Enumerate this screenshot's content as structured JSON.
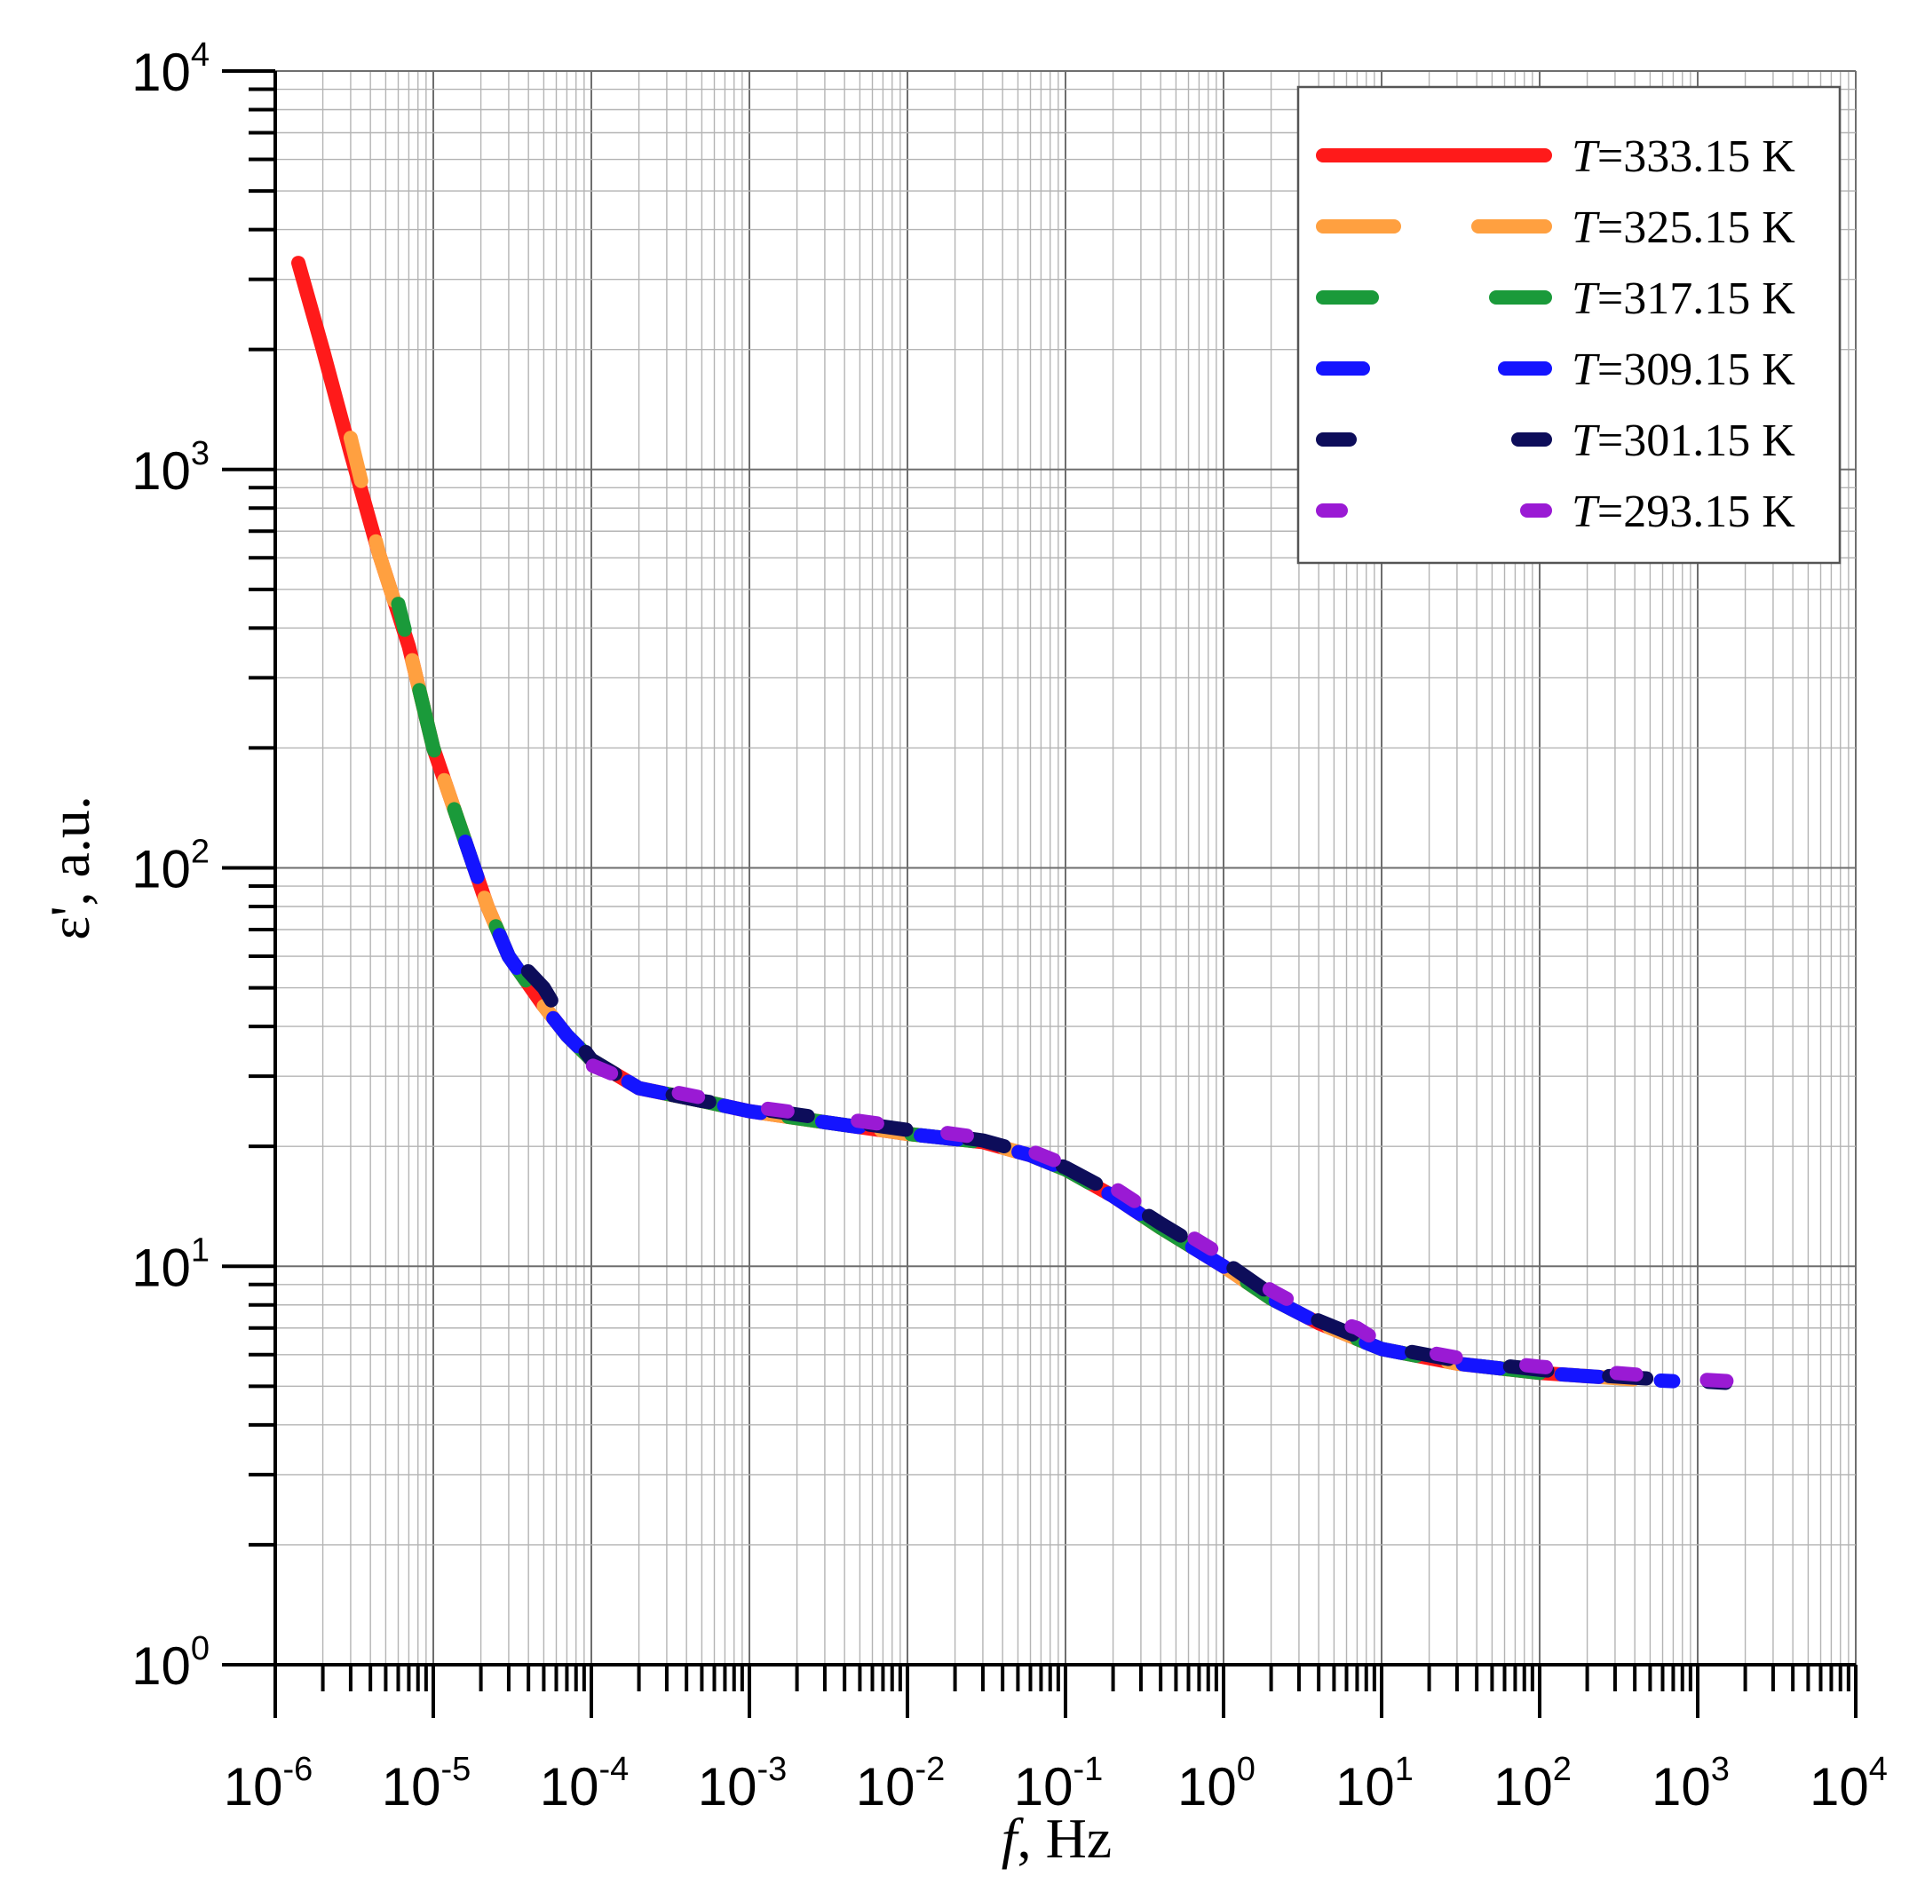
{
  "chart_data": {
    "type": "line",
    "xlabel": {
      "var": "f",
      "rest": ", Hz"
    },
    "ylabel": "ε', a.u.",
    "x_scale": "log",
    "y_scale": "log",
    "xlim": [
      1e-06,
      10000.0
    ],
    "ylim": [
      1,
      10000
    ],
    "x_ticks": [
      {
        "base": "10",
        "exp": "-6",
        "value": 1e-06
      },
      {
        "base": "10",
        "exp": "-5",
        "value": 1e-05
      },
      {
        "base": "10",
        "exp": "-4",
        "value": 0.0001
      },
      {
        "base": "10",
        "exp": "-3",
        "value": 0.001
      },
      {
        "base": "10",
        "exp": "-2",
        "value": 0.01
      },
      {
        "base": "10",
        "exp": "-1",
        "value": 0.1
      },
      {
        "base": "10",
        "exp": "0",
        "value": 1
      },
      {
        "base": "10",
        "exp": "1",
        "value": 10
      },
      {
        "base": "10",
        "exp": "2",
        "value": 100
      },
      {
        "base": "10",
        "exp": "3",
        "value": 1000
      },
      {
        "base": "10",
        "exp": "4",
        "value": 10000
      }
    ],
    "y_ticks": [
      {
        "base": "10",
        "exp": "0",
        "value": 1
      },
      {
        "base": "10",
        "exp": "1",
        "value": 10
      },
      {
        "base": "10",
        "exp": "2",
        "value": 100
      },
      {
        "base": "10",
        "exp": "3",
        "value": 1000
      },
      {
        "base": "10",
        "exp": "4",
        "value": 10000
      }
    ],
    "grid": true,
    "legend_position": "top-right",
    "series": [
      {
        "name": "T=333.15 K",
        "var": "T",
        "rest": "=333.15 K",
        "color": "#ff1a1a",
        "style": "solid",
        "x": [
          1.4e-06,
          2e-06,
          3e-06,
          4.5e-06,
          7e-06,
          1e-05,
          1.5e-05,
          2.2e-05,
          3e-05,
          5e-05,
          7e-05,
          0.0001,
          0.0002,
          0.0005,
          0.001,
          0.003,
          0.01,
          0.03,
          0.06,
          0.1,
          0.2,
          0.4,
          1,
          2,
          4,
          10,
          30,
          100,
          200
        ],
        "y": [
          3300,
          2000,
          1100,
          620,
          360,
          200,
          125,
          80,
          60,
          45,
          38,
          33,
          28,
          26,
          24.5,
          23,
          21.5,
          20.5,
          19,
          17.5,
          15,
          12.5,
          10,
          8.3,
          7.2,
          6.2,
          5.7,
          5.4,
          5.3
        ]
      },
      {
        "name": "T=325.15 K",
        "var": "T",
        "rest": "=325.15 K",
        "color": "#ffa040",
        "style": "dash-long",
        "x": [
          3e-06,
          4.5e-06,
          7e-06,
          1e-05,
          1.5e-05,
          2.2e-05,
          3e-05,
          5e-05,
          7e-05,
          0.0001,
          0.0002,
          0.0005,
          0.001,
          0.003,
          0.01,
          0.03,
          0.06,
          0.1,
          0.2,
          0.4,
          1,
          2,
          4,
          10,
          30,
          100,
          200,
          400
        ],
        "y": [
          1200,
          620,
          360,
          200,
          125,
          80,
          60,
          45,
          38,
          33,
          28,
          26,
          24.5,
          23,
          21.5,
          20.5,
          19,
          17.5,
          15,
          12.5,
          10,
          8.3,
          7.2,
          6.2,
          5.7,
          5.4,
          5.3,
          5.2
        ]
      },
      {
        "name": "T=317.15 K",
        "var": "T",
        "rest": "=317.15 K",
        "color": "#1a9a3a",
        "style": "dash-long",
        "x": [
          6e-06,
          7e-06,
          1e-05,
          1.5e-05,
          2.2e-05,
          3e-05,
          5e-05,
          7e-05,
          0.0001,
          0.0002,
          0.0005,
          0.001,
          0.003,
          0.01,
          0.03,
          0.06,
          0.1,
          0.2,
          0.4,
          1,
          2,
          4,
          10,
          30,
          100,
          200
        ],
        "y": [
          460,
          360,
          200,
          125,
          80,
          60,
          45,
          38,
          33,
          28,
          26,
          24.5,
          23,
          21.5,
          20.5,
          19,
          17.5,
          15,
          12.5,
          10,
          8.3,
          7.2,
          6.2,
          5.7,
          5.4,
          5.3
        ]
      },
      {
        "name": "T=309.15 K",
        "var": "T",
        "rest": "=309.15 K",
        "color": "#1414ff",
        "style": "dash",
        "x": [
          1.3e-05,
          1.5e-05,
          2.2e-05,
          3e-05,
          5e-05,
          7e-05,
          0.0001,
          0.0002,
          0.0005,
          0.001,
          0.003,
          0.01,
          0.03,
          0.06,
          0.1,
          0.2,
          0.4,
          1,
          2,
          4,
          10,
          30,
          100,
          200,
          400,
          700
        ],
        "y": [
          150,
          125,
          80,
          60,
          45,
          38,
          33,
          28,
          26,
          24.5,
          23,
          21.5,
          20.5,
          19,
          17.5,
          15,
          12.5,
          10,
          8.3,
          7.2,
          6.2,
          5.7,
          5.4,
          5.3,
          5.2,
          5.15
        ]
      },
      {
        "name": "T=301.15 K",
        "var": "T",
        "rest": "=301.15 K",
        "color": "#0d0d5a",
        "style": "dash",
        "x": [
          3e-05,
          5e-05,
          7e-05,
          0.0001,
          0.0002,
          0.0005,
          0.001,
          0.003,
          0.01,
          0.03,
          0.06,
          0.1,
          0.2,
          0.4,
          1,
          2,
          4,
          10,
          30,
          100,
          200,
          400,
          1000,
          1500
        ],
        "y": [
          62,
          50,
          40,
          33,
          28,
          26,
          25,
          23.5,
          22,
          20.7,
          19.2,
          17.7,
          15.3,
          12.8,
          10.3,
          8.5,
          7.3,
          6.3,
          5.8,
          5.5,
          5.35,
          5.25,
          5.15,
          5.1
        ]
      },
      {
        "name": "T=293.15 K",
        "var": "T",
        "rest": "=293.15 K",
        "color": "#9a1ad4",
        "style": "dash-short",
        "x": [
          0.0001,
          0.0002,
          0.0005,
          0.001,
          0.003,
          0.01,
          0.03,
          0.06,
          0.1,
          0.2,
          0.4,
          1,
          2,
          4,
          7,
          10,
          30,
          100,
          300,
          1000,
          2500
        ],
        "y": [
          32,
          28.5,
          26.5,
          25.2,
          23.8,
          22.3,
          21,
          19.5,
          18,
          15.8,
          13.2,
          10.6,
          8.7,
          7.5,
          7,
          6.4,
          5.9,
          5.6,
          5.4,
          5.2,
          5.1
        ]
      }
    ]
  }
}
